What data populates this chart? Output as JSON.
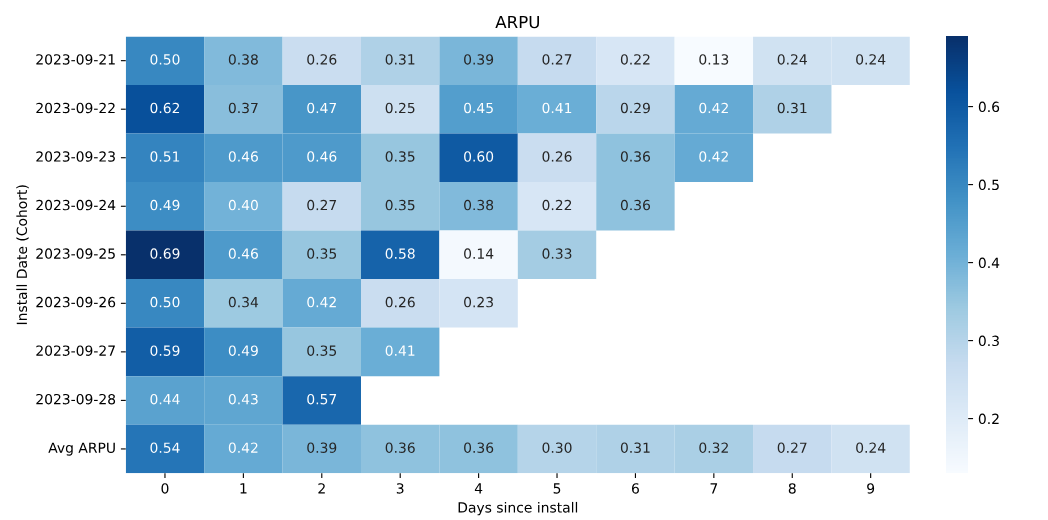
{
  "chart_data": {
    "type": "heatmap",
    "title": "ARPU",
    "xlabel": "Days since install",
    "ylabel": "Install Date (Cohort)",
    "categories": [
      "0",
      "1",
      "2",
      "3",
      "4",
      "5",
      "6",
      "7",
      "8",
      "9"
    ],
    "y_categories": [
      "2023-09-21",
      "2023-09-22",
      "2023-09-23",
      "2023-09-24",
      "2023-09-25",
      "2023-09-26",
      "2023-09-27",
      "2023-09-28",
      "Avg ARPU"
    ],
    "cells": [
      [
        0.5,
        0.38,
        0.26,
        0.31,
        0.39,
        0.27,
        0.22,
        0.13,
        0.24,
        0.24
      ],
      [
        0.62,
        0.37,
        0.47,
        0.25,
        0.45,
        0.41,
        0.29,
        0.42,
        0.31,
        null
      ],
      [
        0.51,
        0.46,
        0.46,
        0.35,
        0.6,
        0.26,
        0.36,
        0.42,
        null,
        null
      ],
      [
        0.49,
        0.4,
        0.27,
        0.35,
        0.38,
        0.22,
        0.36,
        null,
        null,
        null
      ],
      [
        0.69,
        0.46,
        0.35,
        0.58,
        0.14,
        0.33,
        null,
        null,
        null,
        null
      ],
      [
        0.5,
        0.34,
        0.42,
        0.26,
        0.23,
        null,
        null,
        null,
        null,
        null
      ],
      [
        0.59,
        0.49,
        0.35,
        0.41,
        null,
        null,
        null,
        null,
        null,
        null
      ],
      [
        0.44,
        0.43,
        0.57,
        null,
        null,
        null,
        null,
        null,
        null,
        null
      ],
      [
        0.54,
        0.42,
        0.39,
        0.36,
        0.36,
        0.3,
        0.31,
        0.32,
        0.27,
        0.24
      ]
    ],
    "cell_labels": [
      [
        "0.50",
        "0.38",
        "0.26",
        "0.31",
        "0.39",
        "0.27",
        "0.22",
        "0.13",
        "0.24",
        "0.24"
      ],
      [
        "0.62",
        "0.37",
        "0.47",
        "0.25",
        "0.45",
        "0.41",
        "0.29",
        "0.42",
        "0.31",
        null
      ],
      [
        "0.51",
        "0.46",
        "0.46",
        "0.35",
        "0.60",
        "0.26",
        "0.36",
        "0.42",
        null,
        null
      ],
      [
        "0.49",
        "0.40",
        "0.27",
        "0.35",
        "0.38",
        "0.22",
        "0.36",
        null,
        null,
        null
      ],
      [
        "0.69",
        "0.46",
        "0.35",
        "0.58",
        "0.14",
        "0.33",
        null,
        null,
        null,
        null
      ],
      [
        "0.50",
        "0.34",
        "0.42",
        "0.26",
        "0.23",
        null,
        null,
        null,
        null,
        null
      ],
      [
        "0.59",
        "0.49",
        "0.35",
        "0.41",
        null,
        null,
        null,
        null,
        null,
        null
      ],
      [
        "0.44",
        "0.43",
        "0.57",
        null,
        null,
        null,
        null,
        null,
        null,
        null
      ],
      [
        "0.54",
        "0.42",
        "0.39",
        "0.36",
        "0.36",
        "0.30",
        "0.31",
        "0.32",
        "0.27",
        "0.24"
      ]
    ],
    "clim": [
      0.13,
      0.69
    ],
    "cticks": [
      0.2,
      0.3,
      0.4,
      0.5,
      0.6
    ]
  }
}
